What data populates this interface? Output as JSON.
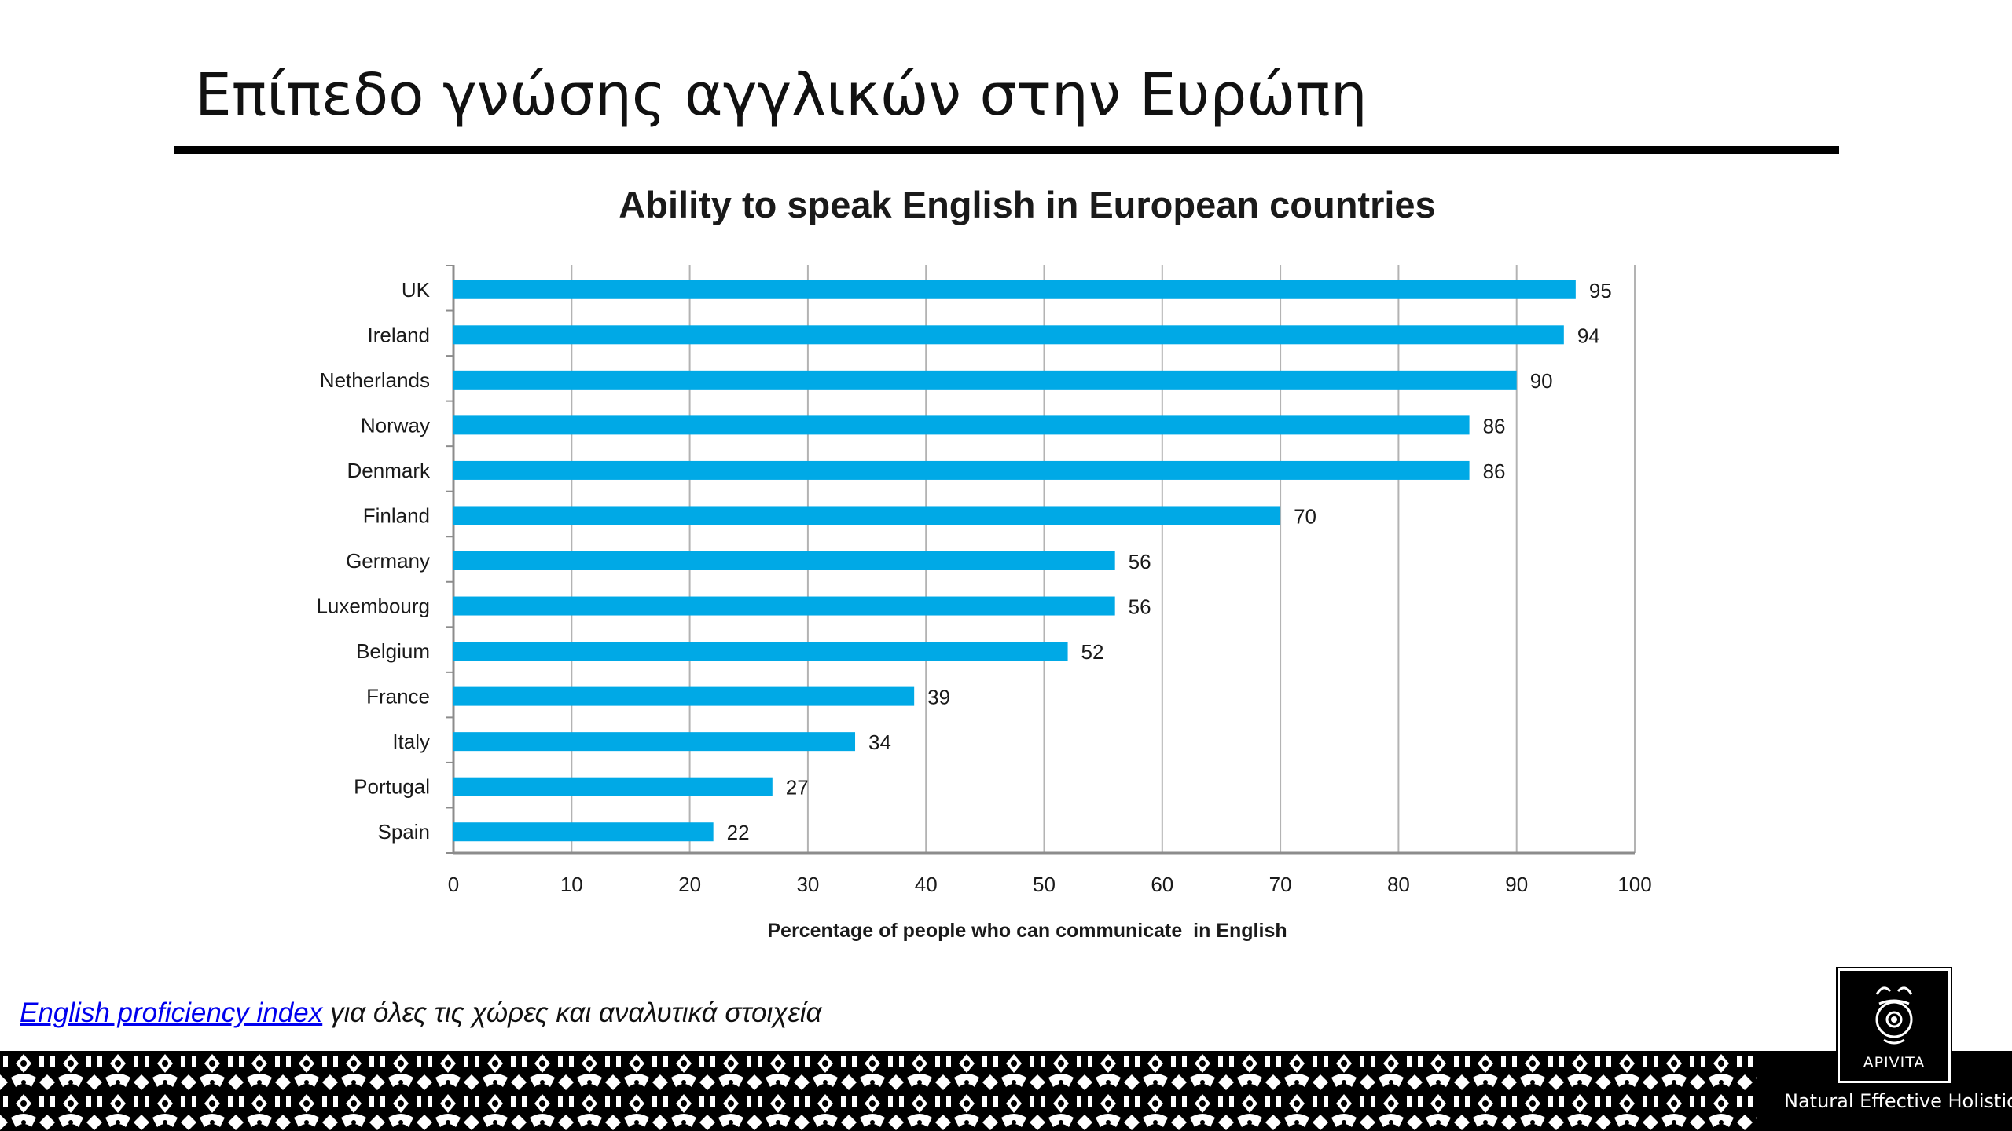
{
  "slide": {
    "title": "Επίπεδο γνώσης αγγλικών στην Ευρώπη"
  },
  "footnote": {
    "link_text": "English proficiency index",
    "text": " για όλες τις χώρες και αναλυτικά στοιχεία"
  },
  "brand": {
    "logo_text": "APIVITA",
    "tagline": "Natural Effective Holistic"
  },
  "chart_data": {
    "type": "bar",
    "orientation": "horizontal",
    "title": "Ability to speak English in European countries",
    "xlabel": "Percentage of people who can communicate  in English",
    "ylabel": "",
    "xlim": [
      0,
      100
    ],
    "x_ticks": [
      0,
      10,
      20,
      30,
      40,
      50,
      60,
      70,
      80,
      90,
      100
    ],
    "grid": "vertical",
    "categories": [
      "UK",
      "Ireland",
      "Netherlands",
      "Norway",
      "Denmark",
      "Finland",
      "Germany",
      "Luxembourg",
      "Belgium",
      "France",
      "Italy",
      "Portugal",
      "Spain"
    ],
    "values": [
      95,
      94,
      90,
      86,
      86,
      70,
      56,
      56,
      52,
      39,
      34,
      27,
      22
    ],
    "data_labels": true,
    "bar_color": "#00a9e6"
  }
}
